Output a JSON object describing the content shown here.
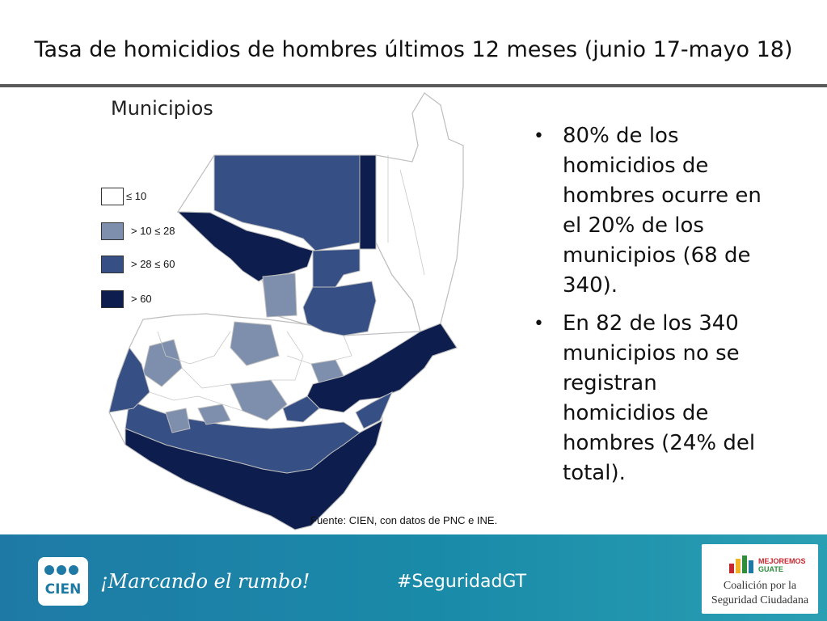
{
  "title": "Tasa de homicidios de hombres últimos 12 meses (junio 17-mayo 18)",
  "map": {
    "label": "Municipios",
    "source": "Fuente: CIEN, con datos de PNC e INE.",
    "colors": {
      "lowest": "#ffffff",
      "low": "#7d8fac",
      "mid": "#364f85",
      "high": "#0d1d4d",
      "border": "#bdbdbd"
    },
    "legend": [
      {
        "label": "≤ 10",
        "color": "#ffffff"
      },
      {
        "label": "> 10 ≤ 28",
        "color": "#7d8fac"
      },
      {
        "label": "> 28 ≤ 60",
        "color": "#364f85"
      },
      {
        "label": "> 60",
        "color": "#0d1d4d"
      }
    ]
  },
  "bullets": [
    {
      "dot": "•",
      "text": "80% de los homicidios de hombres ocurre en el 20% de los municipios (68 de 340)."
    },
    {
      "dot": "•",
      "text": "En 82 de los 340 municipios no se registran homicidios de hombres (24% del total)."
    }
  ],
  "footer": {
    "logo_text": "CIEN",
    "slogan": "¡Marcando el rumbo!",
    "hashtag": "#SeguridadGT",
    "partner": {
      "brand_line1": "MEJOREMOS",
      "brand_line2": "GUATE",
      "line1": "Coalición por la",
      "line2": "Seguridad Ciudadana"
    }
  }
}
